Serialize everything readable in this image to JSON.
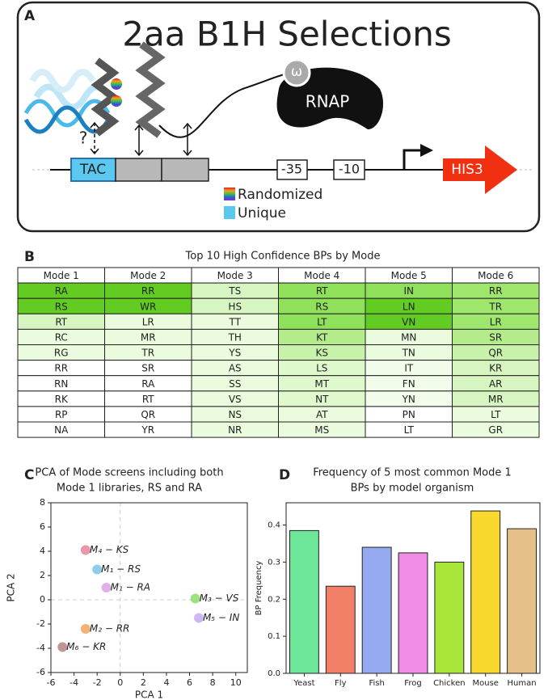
{
  "panel_a": {
    "label": "A",
    "title": "2aa B1H Selections",
    "omega": "ω",
    "rnap": "RNAP",
    "question": "?",
    "tac": "TAC",
    "box35": "-35",
    "box10": "-10",
    "gene": "HIS3",
    "legend": [
      "Randomized",
      "Unique"
    ]
  },
  "panel_b": {
    "label": "B",
    "title": "Top 10 High Confidence BPs by Mode",
    "table": {
      "header": [
        "Mode 1",
        "Mode 2",
        "Mode 3",
        "Mode 4",
        "Mode 5",
        "Mode 6"
      ],
      "rows": [
        [
          "RA",
          "RR",
          "TS",
          "RT",
          "IN",
          "RR"
        ],
        [
          "RS",
          "WR",
          "HS",
          "RS",
          "LN",
          "TR"
        ],
        [
          "RT",
          "LR",
          "TT",
          "LT",
          "VN",
          "LR"
        ],
        [
          "RC",
          "MR",
          "TH",
          "KT",
          "MN",
          "SR"
        ],
        [
          "RG",
          "TR",
          "YS",
          "KS",
          "TN",
          "QR"
        ],
        [
          "RR",
          "SR",
          "AS",
          "LS",
          "IT",
          "KR"
        ],
        [
          "RN",
          "RA",
          "SS",
          "MT",
          "FN",
          "AR"
        ],
        [
          "RK",
          "RT",
          "VS",
          "NT",
          "YN",
          "MR"
        ],
        [
          "RP",
          "QR",
          "NS",
          "AT",
          "PN",
          "LT"
        ],
        [
          "NA",
          "YR",
          "NR",
          "MS",
          "LT",
          "GR"
        ]
      ],
      "colors": [
        [
          "#62cc22",
          "#62cc22",
          "#d6f5c0",
          "#8fe05a",
          "#8fe05a",
          "#9ee66c"
        ],
        [
          "#62cc22",
          "#62cc22",
          "#d6f5c0",
          "#8fe05a",
          "#62cc22",
          "#9ee66c"
        ],
        [
          "#d6f5c0",
          "#eafbde",
          "#eafbde",
          "#8fe05a",
          "#62cc22",
          "#9ee66c"
        ],
        [
          "#eafbde",
          "#eafbde",
          "#eafbde",
          "#b4ec8c",
          "#eafbde",
          "#b4ec8c"
        ],
        [
          "#eafbde",
          "#eafbde",
          "#eafbde",
          "#c8f2aa",
          "#eafbde",
          "#c8f2aa"
        ],
        [
          "#ffffff",
          "#ffffff",
          "#eafbde",
          "#dff8cc",
          "#f2fcea",
          "#d6f5c0"
        ],
        [
          "#ffffff",
          "#ffffff",
          "#eafbde",
          "#dff8cc",
          "#f2fcea",
          "#d6f5c0"
        ],
        [
          "#ffffff",
          "#ffffff",
          "#eafbde",
          "#dff8cc",
          "#f2fcea",
          "#d6f5c0"
        ],
        [
          "#ffffff",
          "#ffffff",
          "#eafbde",
          "#eafbde",
          "#ffffff",
          "#eafbde"
        ],
        [
          "#ffffff",
          "#ffffff",
          "#eafbde",
          "#eafbde",
          "#ffffff",
          "#eafbde"
        ]
      ]
    }
  },
  "chart_data": [
    {
      "type": "scatter",
      "panel_label": "C",
      "title": [
        "PCA of Mode screens including both",
        "Mode 1 libraries, RS and RA"
      ],
      "x_label": "PCA 1",
      "y_label": "PCA 2",
      "labels": [
        "M₄ − KS",
        "M₁ − RS",
        "M₁ − RA",
        "M₃ − VS",
        "M₅ − IN",
        "M₂ − RR",
        "M₆ − KR"
      ],
      "x": [
        -3,
        -2,
        -1.2,
        6.5,
        6.8,
        -3,
        -5
      ],
      "y": [
        4.1,
        2.5,
        1.0,
        0.1,
        -1.5,
        -2.4,
        -3.9
      ],
      "colors": [
        "#e8849a",
        "#7cc4e4",
        "#dca2e4",
        "#8ede6a",
        "#c6aaf0",
        "#f0a65c",
        "#b48484"
      ],
      "xlim": [
        -6,
        11
      ],
      "ylim": [
        -6,
        8
      ],
      "xticks": [
        -6,
        -4,
        -2,
        0,
        2,
        4,
        6,
        8,
        10
      ],
      "yticks": [
        -6,
        -4,
        -2,
        0,
        2,
        4,
        6,
        8
      ],
      "zero_lines": true
    },
    {
      "type": "bar",
      "panel_label": "D",
      "title": [
        "Frequency of 5 most common Mode 1",
        "BPs by model organism"
      ],
      "y_label": "BP Frequency",
      "categories": [
        "Yeast",
        "Fly",
        "Fish",
        "Frog",
        "Chicken",
        "Mouse",
        "Human"
      ],
      "values": [
        0.385,
        0.235,
        0.34,
        0.325,
        0.3,
        0.438,
        0.39
      ],
      "colors": [
        "#6ee69a",
        "#f28068",
        "#96aaf0",
        "#f08ce6",
        "#a8e63c",
        "#f8d82c",
        "#e6c088"
      ],
      "ylim": [
        0,
        0.46
      ],
      "yticks": [
        {
          "value": 0,
          "label": "0.0"
        },
        0.1,
        0.2,
        0.3,
        0.4
      ]
    }
  ]
}
